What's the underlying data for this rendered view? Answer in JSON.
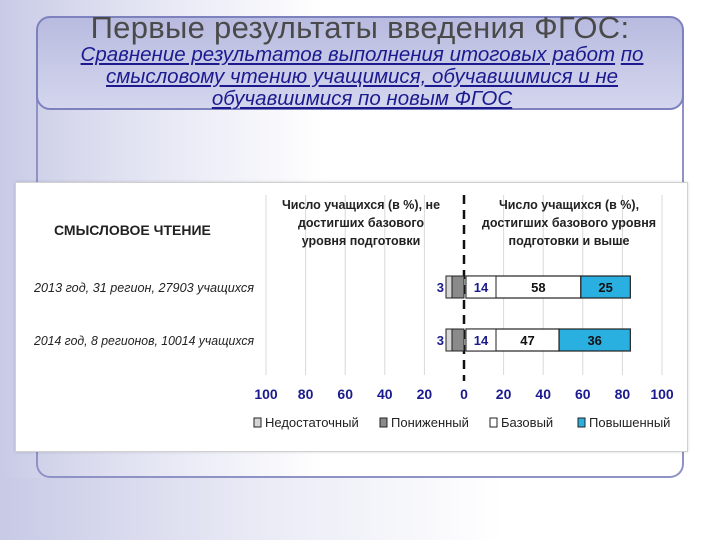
{
  "slide": {
    "title": "Первые результаты введения ФГОС:",
    "subtitle_line1": "Сравнение результатов выполнения итоговых работ",
    "subtitle_line1_end": "по",
    "subtitle_line2": "смысловому чтению учащимися, обучавшимися и не",
    "subtitle_line3": "обучавшимися по новым ФГОС"
  },
  "colors": {
    "basic": "#ffffff",
    "advanced": "#2ab0e0",
    "reduced": "#8a8a8a",
    "insufficient": "#d6d6d6",
    "value_low": "#1b1b8f"
  },
  "chart_data": {
    "type": "bar",
    "orientation": "horizontal",
    "stacked": true,
    "diverging": true,
    "title": "СМЫСЛОВОЕ ЧТЕНИЕ",
    "left_header": [
      "Число учащихся (в %), не",
      "достигших базового",
      "уровня подготовки"
    ],
    "right_header": [
      "Число учащихся (в %),",
      "достигших базового уровня",
      "подготовки и выше"
    ],
    "categories": [
      "2013 год, 31 регион, 27903 учащихся",
      "2014 год, 8 регионов, 10014 учащихся"
    ],
    "series": [
      {
        "name": "Недостаточный",
        "side": "left",
        "values": [
          3,
          3
        ]
      },
      {
        "name": "Пониженный",
        "side": "left",
        "values": [
          14,
          14
        ]
      },
      {
        "name": "Базовый",
        "side": "right",
        "values": [
          58,
          47
        ]
      },
      {
        "name": "Повышенный",
        "side": "right",
        "values": [
          25,
          36
        ]
      }
    ],
    "xticks": [
      {
        "value": -100,
        "label": "100"
      },
      {
        "value": -80,
        "label": "80"
      },
      {
        "value": -60,
        "label": "60"
      },
      {
        "value": -40,
        "label": "40"
      },
      {
        "value": -20,
        "label": "20"
      },
      {
        "value": 0,
        "label": "0"
      },
      {
        "value": 20,
        "label": "20"
      },
      {
        "value": 40,
        "label": "40"
      },
      {
        "value": 60,
        "label": "60"
      },
      {
        "value": 80,
        "label": "80"
      },
      {
        "value": 100,
        "label": "100"
      }
    ],
    "xlim": [
      -100,
      100
    ],
    "grid": true,
    "legend_position": "bottom"
  }
}
